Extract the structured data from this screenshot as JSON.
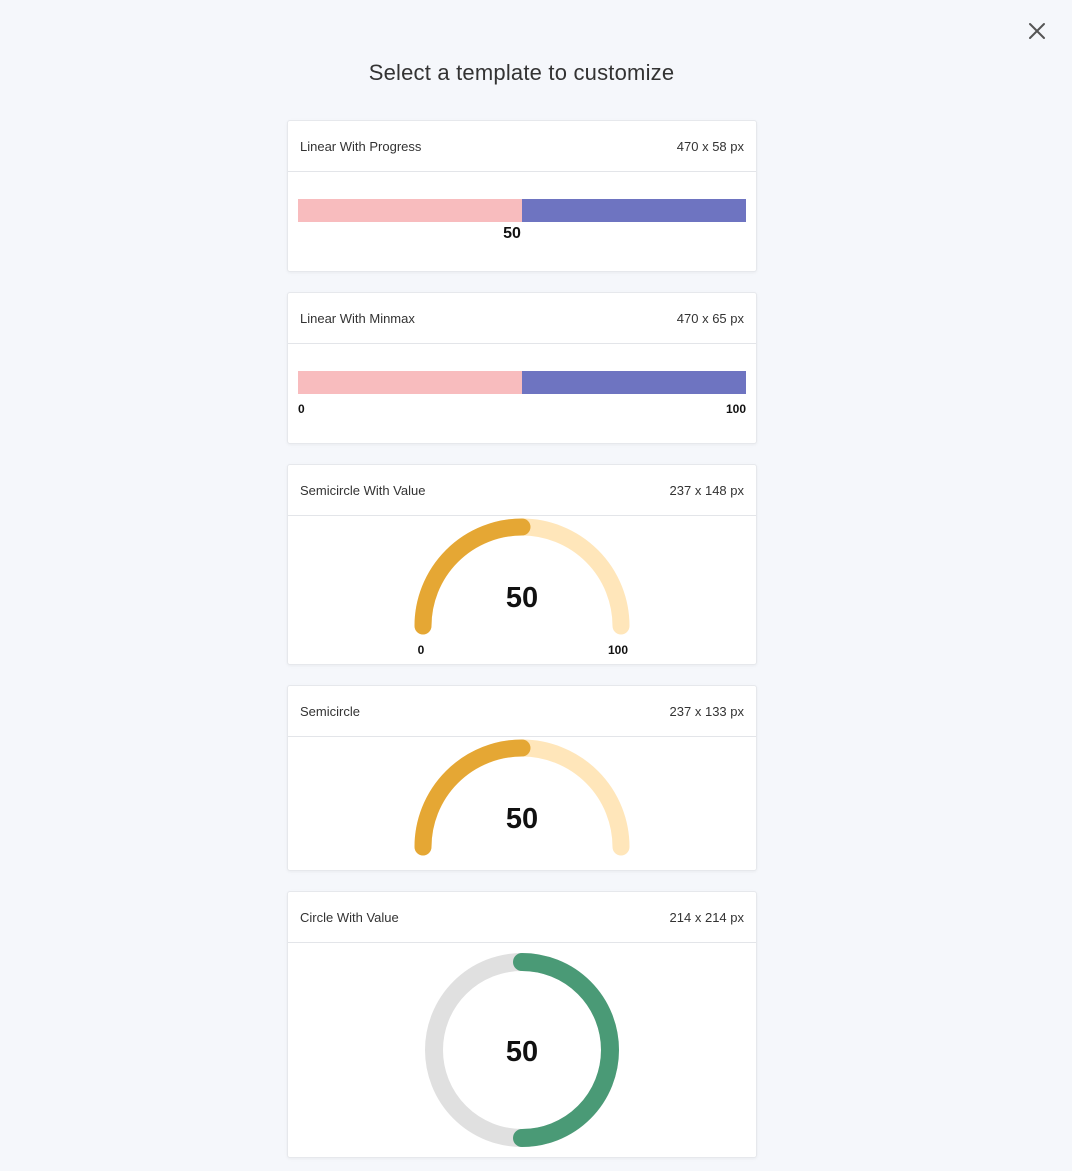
{
  "header": {
    "title": "Select a template to customize",
    "close_icon": "close-icon"
  },
  "colors": {
    "linear_fill": "#f8bcbe",
    "linear_track": "#6e74c1",
    "semi_fill": "#e5a734",
    "semi_track": "#ffe6ba",
    "circle_fill": "#4a9a76",
    "circle_track": "#e0e0e0"
  },
  "templates": [
    {
      "name": "Linear With Progress",
      "size": "470 x 58 px",
      "value": 50,
      "value_label": "50"
    },
    {
      "name": "Linear With Minmax",
      "size": "470 x 65 px",
      "value": 50,
      "min_label": "0",
      "max_label": "100"
    },
    {
      "name": "Semicircle With Value",
      "size": "237 x 148 px",
      "value": 50,
      "value_label": "50",
      "min_label": "0",
      "max_label": "100"
    },
    {
      "name": "Semicircle",
      "size": "237 x 133 px",
      "value": 50,
      "value_label": "50"
    },
    {
      "name": "Circle With Value",
      "size": "214 x 214 px",
      "value": 50,
      "value_label": "50"
    }
  ]
}
